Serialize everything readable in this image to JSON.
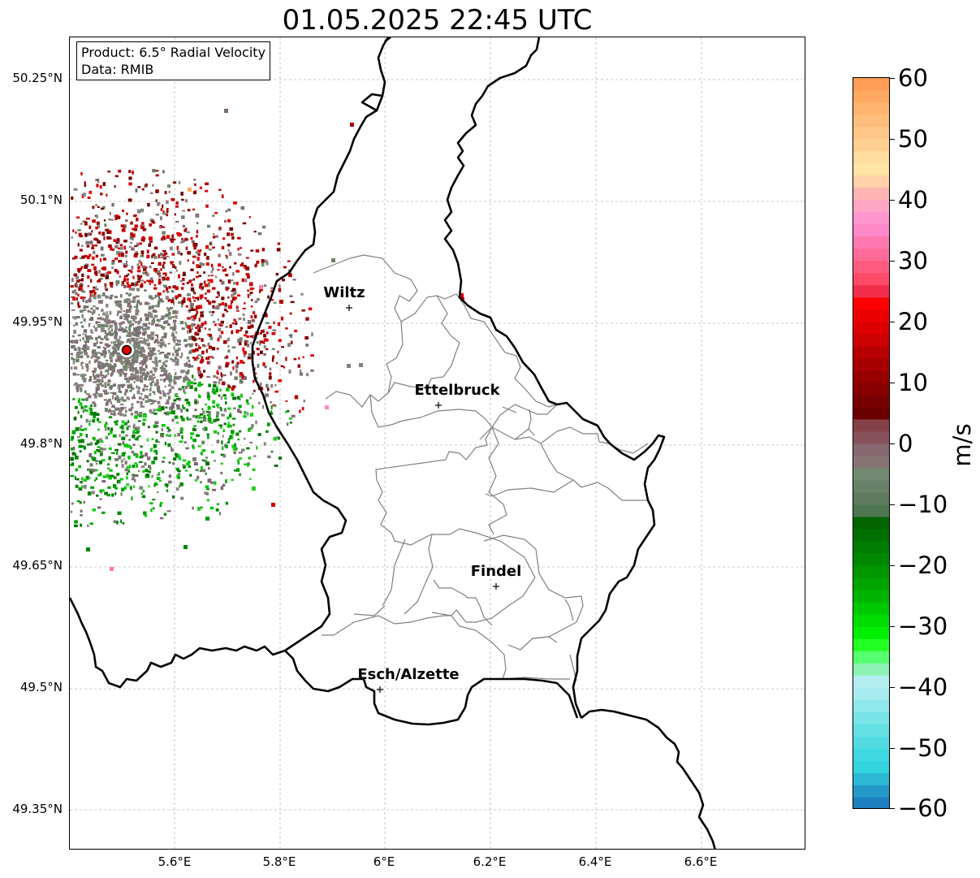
{
  "title": "01.05.2025 22:45 UTC",
  "info_box": {
    "product": "Product: 6.5° Radial Velocity",
    "data": "Data: RMIB"
  },
  "latitude_ticks": [
    "50.25°N",
    "50.1°N",
    "49.95°N",
    "49.8°N",
    "49.65°N",
    "49.5°N",
    "49.35°N"
  ],
  "longitude_ticks": [
    "5.6°E",
    "5.8°E",
    "6°E",
    "6.2°E",
    "6.4°E",
    "6.6°E"
  ],
  "cities": [
    {
      "name": "Wiltz"
    },
    {
      "name": "Ettelbruck"
    },
    {
      "name": "Findel"
    },
    {
      "name": "Esch/Alzette"
    }
  ],
  "colorbar": {
    "label": "m/s",
    "ticks": [
      "60",
      "50",
      "40",
      "30",
      "20",
      "10",
      "0",
      "−10",
      "−20",
      "−30",
      "−40",
      "−50",
      "−60"
    ],
    "range": [
      -60,
      60
    ]
  },
  "colors": {
    "radar_site": "#e00000",
    "country_border": "#000000",
    "district_border": "#808080",
    "grid": "#b0b0b0"
  }
}
